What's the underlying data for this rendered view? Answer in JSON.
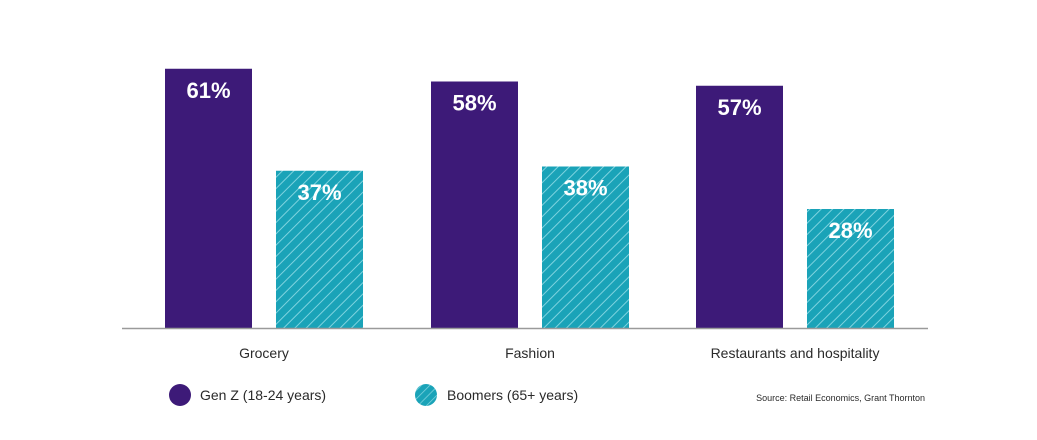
{
  "chart_data": {
    "type": "bar",
    "categories": [
      "Grocery",
      "Fashion",
      "Restaurants and hospitality"
    ],
    "series": [
      {
        "name": "Gen Z (18-24 years)",
        "values": [
          61,
          58,
          57
        ],
        "labels": [
          "61%",
          "58%",
          "57%"
        ],
        "color": "#3d1a78",
        "pattern": "solid"
      },
      {
        "name": "Boomers (65+ years)",
        "values": [
          37,
          38,
          28
        ],
        "labels": [
          "37%",
          "38%",
          "28%"
        ],
        "color": "#1aa3b8",
        "pattern": "diagonal-hatch"
      }
    ],
    "unit": "%",
    "ylim": [
      0,
      65
    ],
    "grid": false,
    "legend_position": "bottom-left",
    "source": "Source: Retail Economics, Grant Thornton"
  },
  "colors": {
    "genz": "#3d1a78",
    "boomers": "#1aa3b8",
    "hatch": "#7fd3df",
    "axis": "#9a9a9a"
  }
}
